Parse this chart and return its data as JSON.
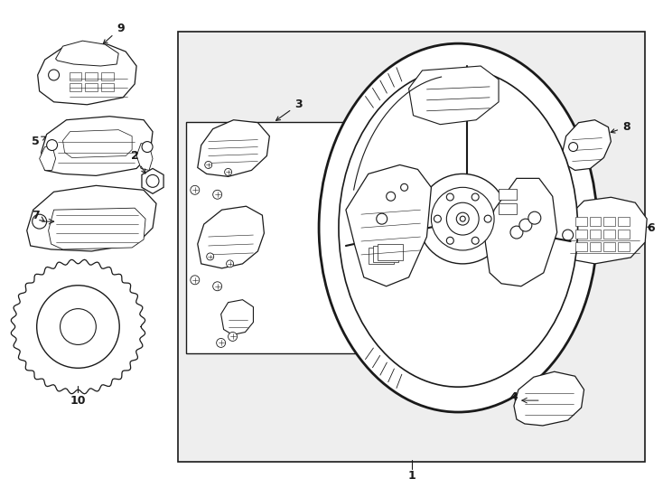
{
  "bg": "#ffffff",
  "gray_fill": "#eeeeee",
  "lc": "#1a1a1a",
  "fig_w": 7.34,
  "fig_h": 5.4,
  "dpi": 100
}
